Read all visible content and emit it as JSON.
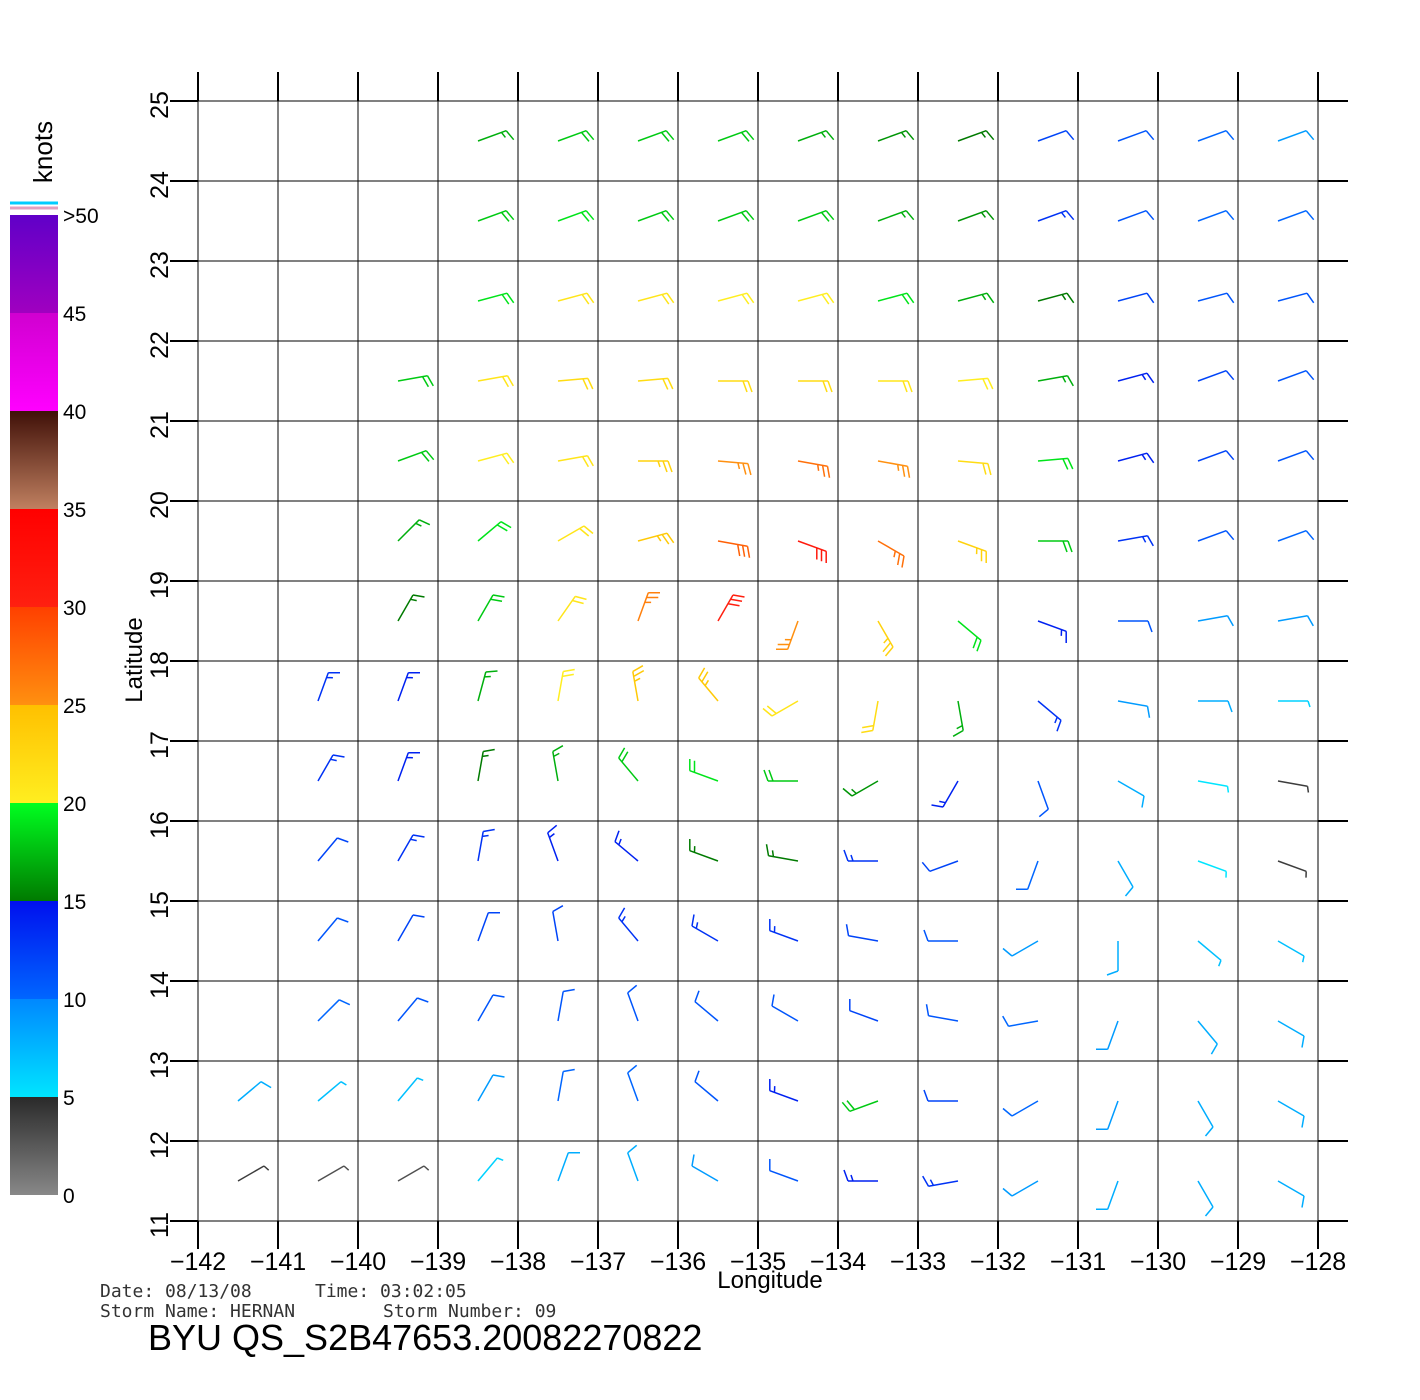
{
  "chart_data": {
    "type": "wind-barb",
    "x_label": "Longitude",
    "y_label": "Latitude",
    "xlim": [
      -142,
      -128
    ],
    "xticks": [
      {
        "value": -142,
        "label": "−142"
      },
      {
        "value": -141,
        "label": "−141"
      },
      {
        "value": -140,
        "label": "−140"
      },
      {
        "value": -139,
        "label": "−139"
      },
      {
        "value": -138,
        "label": "−138"
      },
      {
        "value": -137,
        "label": "−137"
      },
      {
        "value": -136,
        "label": "−136"
      },
      {
        "value": -135,
        "label": "−135"
      },
      {
        "value": -134,
        "label": "−134"
      },
      {
        "value": -133,
        "label": "−133"
      },
      {
        "value": -132,
        "label": "−132"
      },
      {
        "value": -131,
        "label": "−131"
      },
      {
        "value": -130,
        "label": "−130"
      },
      {
        "value": -129,
        "label": "−129"
      },
      {
        "value": -128,
        "label": "−128"
      }
    ],
    "ylim": [
      11,
      25
    ],
    "yticks": [
      11,
      12,
      13,
      14,
      15,
      16,
      17,
      18,
      19,
      20,
      21,
      22,
      23,
      24,
      25
    ],
    "grid": true,
    "lons": [
      -141.5,
      -140.5,
      -139.5,
      -138.5,
      -137.5,
      -136.5,
      -135.5,
      -134.5,
      -133.5,
      -132.5,
      -131.5,
      -130.5,
      -129.5,
      -128.5
    ],
    "lats": [
      24.5,
      23.5,
      22.5,
      21.5,
      20.5,
      19.5,
      18.5,
      17.5,
      16.5,
      15.5,
      14.5,
      13.5,
      12.5,
      11.5
    ],
    "speed": [
      [
        null,
        null,
        null,
        17,
        18,
        18,
        18,
        17,
        16,
        15,
        12,
        11,
        10,
        9
      ],
      [
        null,
        null,
        null,
        18,
        19,
        18,
        18,
        18,
        17,
        16,
        13,
        11,
        10,
        10
      ],
      [
        null,
        null,
        null,
        19,
        21,
        21,
        20,
        20,
        19,
        17,
        15,
        12,
        11,
        11
      ],
      [
        null,
        null,
        18,
        21,
        22,
        22,
        22,
        22,
        21,
        20,
        17,
        14,
        12,
        11
      ],
      [
        null,
        null,
        18,
        20,
        21,
        23,
        25,
        27,
        25,
        22,
        19,
        14,
        12,
        11
      ],
      [
        null,
        null,
        17,
        19,
        21,
        24,
        28,
        31,
        27,
        23,
        18,
        13,
        11,
        10
      ],
      [
        null,
        null,
        15,
        18,
        21,
        26,
        30,
        25,
        23,
        19,
        14,
        11,
        9,
        9
      ],
      [
        null,
        13,
        14,
        17,
        20,
        24,
        24,
        21,
        22,
        17,
        13,
        9,
        8,
        6
      ],
      [
        null,
        13,
        14,
        15,
        17,
        18,
        19,
        18,
        16,
        14,
        11,
        8,
        5,
        4
      ],
      [
        null,
        12,
        13,
        13,
        14,
        14,
        15,
        15,
        13,
        12,
        10,
        8,
        5,
        4
      ],
      [
        null,
        11,
        12,
        12,
        12,
        13,
        13,
        13,
        12,
        11,
        9,
        8,
        7,
        7
      ],
      [
        null,
        10,
        11,
        11,
        11,
        11,
        11,
        11,
        12,
        11,
        10,
        9,
        8,
        8
      ],
      [
        8,
        7,
        7,
        9,
        10,
        10,
        11,
        14,
        18,
        12,
        10,
        9,
        8,
        8
      ],
      [
        4,
        3,
        3,
        6,
        8,
        8,
        9,
        11,
        14,
        13,
        9,
        8,
        8,
        8
      ]
    ],
    "direction": [
      [
        null,
        null,
        null,
        70,
        70,
        70,
        70,
        70,
        70,
        70,
        70,
        70,
        70,
        70
      ],
      [
        null,
        null,
        null,
        70,
        70,
        70,
        70,
        70,
        70,
        70,
        70,
        70,
        70,
        70
      ],
      [
        null,
        null,
        null,
        75,
        75,
        75,
        75,
        75,
        75,
        75,
        75,
        75,
        75,
        75
      ],
      [
        null,
        null,
        80,
        80,
        85,
        85,
        90,
        90,
        90,
        85,
        80,
        75,
        70,
        70
      ],
      [
        null,
        null,
        70,
        75,
        80,
        90,
        95,
        100,
        100,
        95,
        85,
        75,
        70,
        70
      ],
      [
        null,
        null,
        45,
        50,
        60,
        75,
        100,
        110,
        120,
        110,
        90,
        80,
        70,
        70
      ],
      [
        null,
        null,
        30,
        30,
        35,
        20,
        30,
        200,
        150,
        130,
        110,
        90,
        80,
        80
      ],
      [
        null,
        20,
        20,
        15,
        10,
        350,
        320,
        240,
        190,
        170,
        130,
        100,
        90,
        90
      ],
      [
        null,
        30,
        20,
        10,
        350,
        320,
        290,
        270,
        240,
        210,
        160,
        120,
        100,
        100
      ],
      [
        null,
        40,
        30,
        10,
        340,
        310,
        290,
        280,
        270,
        250,
        200,
        150,
        110,
        110
      ],
      [
        null,
        40,
        30,
        20,
        350,
        320,
        300,
        290,
        280,
        270,
        240,
        180,
        130,
        120
      ],
      [
        null,
        45,
        40,
        30,
        10,
        340,
        310,
        300,
        290,
        280,
        260,
        200,
        140,
        120
      ],
      [
        50,
        50,
        40,
        30,
        10,
        340,
        310,
        290,
        250,
        270,
        240,
        200,
        150,
        120
      ],
      [
        60,
        60,
        60,
        40,
        20,
        340,
        300,
        290,
        270,
        260,
        240,
        200,
        150,
        120
      ]
    ],
    "colorbar": {
      "title": "knots",
      "range": [
        0,
        50
      ],
      "ticks": [
        0,
        5,
        10,
        15,
        20,
        25,
        30,
        35,
        40,
        45,
        {
          "value": 50,
          "label": ">50"
        }
      ],
      "colors": [
        [
          "#888888",
          "#2a2a2a"
        ],
        [
          "#00e5ff",
          "#0088ff"
        ],
        [
          "#0066ff",
          "#0010ee"
        ],
        [
          "#007a00",
          "#00ff20"
        ],
        [
          "#ffee20",
          "#ffc000"
        ],
        [
          "#ff9010",
          "#ff4000"
        ],
        [
          "#ff2010",
          "#ff0000"
        ],
        [
          "#c08060",
          "#401008"
        ],
        [
          "#ff00ff",
          "#d000d0"
        ],
        [
          "#a000c0",
          "#6000c8"
        ]
      ]
    },
    "footer": {
      "date": "Date: 08/13/08",
      "time": "Time: 03:02:05",
      "storm_name": "Storm Name: HERNAN",
      "storm_number": "Storm Number: 09",
      "file": "BYU QS_S2B47653.20082270822"
    }
  }
}
